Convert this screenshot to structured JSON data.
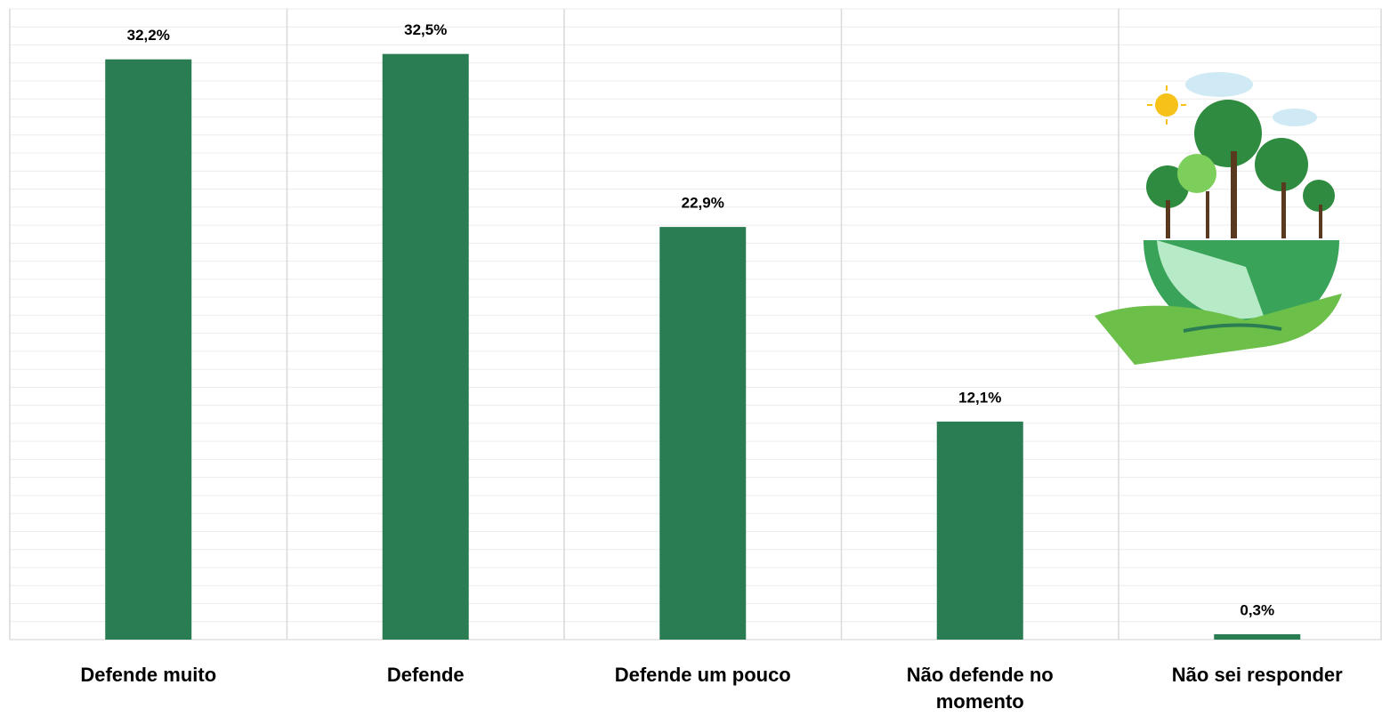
{
  "chart_data": {
    "type": "bar",
    "categories": [
      "Defende muito",
      "Defende",
      "Defende um pouco",
      "Não defende no momento",
      "Não sei responder"
    ],
    "values": [
      32.2,
      32.5,
      22.9,
      12.1,
      0.3
    ],
    "value_labels": [
      "32,2%",
      "32,5%",
      "22,9%",
      "12,1%",
      "0,3%"
    ],
    "color": "#2a7d53",
    "ylim": [
      0,
      35
    ],
    "yticks": [
      0,
      1,
      2,
      3,
      4,
      5,
      6,
      7,
      8,
      9,
      10,
      11,
      12,
      13,
      14,
      15,
      16,
      17,
      18,
      19,
      20,
      21,
      22,
      23,
      24,
      25,
      26,
      27,
      28,
      29,
      30,
      31,
      32,
      33,
      34,
      35
    ],
    "grid": true
  }
}
